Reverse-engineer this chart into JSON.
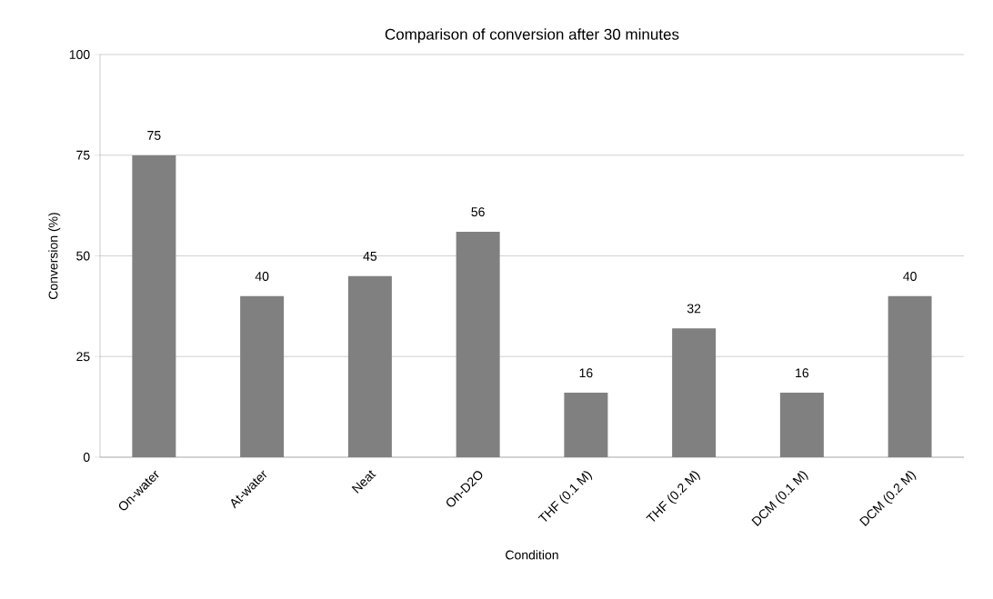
{
  "chart_data": {
    "type": "bar",
    "title": "Comparison of conversion after 30 minutes",
    "xlabel": "Condition",
    "ylabel": "Conversion (%)",
    "categories": [
      "On-water",
      "At-water",
      "Neat",
      "On-D2O",
      "THF (0.1 M)",
      "THF (0.2 M)",
      "DCM (0.1 M)",
      "DCM (0.2 M)"
    ],
    "values": [
      75,
      40,
      45,
      56,
      16,
      32,
      16,
      40
    ],
    "color": "#808080",
    "ylim": [
      0,
      100
    ],
    "yticks": [
      0,
      25,
      50,
      75,
      100
    ],
    "grid": "y",
    "data_labels": true
  }
}
